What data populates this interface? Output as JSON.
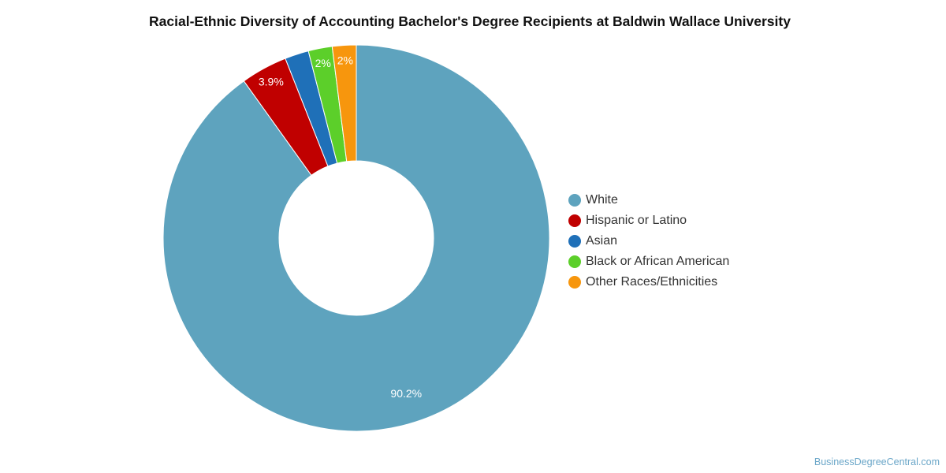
{
  "chart_data": {
    "type": "pie",
    "variant": "donut",
    "title": "Racial-Ethnic Diversity of Accounting Bachelor's Degree Recipients at Baldwin Wallace University",
    "slices": [
      {
        "name": "White",
        "value": 90.2,
        "label": "90.2%",
        "color": "#5ea3be"
      },
      {
        "name": "Hispanic or Latino",
        "value": 3.9,
        "label": "3.9%",
        "color": "#c00000"
      },
      {
        "name": "Asian",
        "value": 2.0,
        "label": "",
        "color": "#1f70b8"
      },
      {
        "name": "Black or African American",
        "value": 2.0,
        "label": "2%",
        "color": "#5ccf2a"
      },
      {
        "name": "Other Races/Ethnicities",
        "value": 2.0,
        "label": "2%",
        "color": "#f7960d"
      }
    ],
    "legend_position": "right"
  },
  "watermark": "BusinessDegreeCentral.com"
}
